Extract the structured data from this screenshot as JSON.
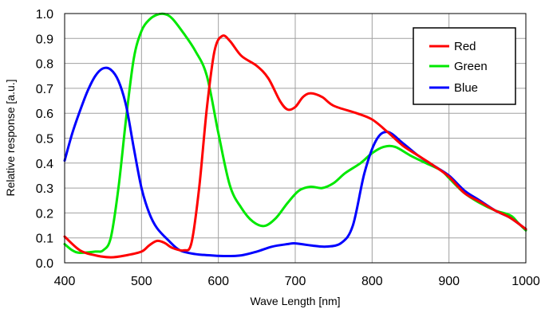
{
  "chart_data": {
    "type": "line",
    "xlabel": "Wave Length [nm]",
    "ylabel": "Relative response [a.u.]",
    "xlim": [
      400,
      1000
    ],
    "ylim": [
      0.0,
      1.0
    ],
    "x_ticks": [
      400,
      500,
      600,
      700,
      800,
      900,
      1000
    ],
    "y_ticks": [
      0.0,
      0.1,
      0.2,
      0.3,
      0.4,
      0.5,
      0.6,
      0.7,
      0.8,
      0.9,
      1.0
    ],
    "x_tick_labels": [
      "400",
      "500",
      "600",
      "700",
      "800",
      "900",
      "1000"
    ],
    "y_tick_labels": [
      "0.0",
      "0.1",
      "0.2",
      "0.3",
      "0.4",
      "0.5",
      "0.6",
      "0.7",
      "0.8",
      "0.9",
      "1.0"
    ],
    "grid": true,
    "legend_position": "top-right",
    "series": [
      {
        "name": "Red",
        "color": "#ff0000",
        "points": [
          [
            400,
            0.105
          ],
          [
            420,
            0.05
          ],
          [
            440,
            0.03
          ],
          [
            460,
            0.022
          ],
          [
            480,
            0.03
          ],
          [
            500,
            0.045
          ],
          [
            510,
            0.07
          ],
          [
            520,
            0.088
          ],
          [
            530,
            0.08
          ],
          [
            540,
            0.06
          ],
          [
            555,
            0.05
          ],
          [
            565,
            0.08
          ],
          [
            575,
            0.3
          ],
          [
            585,
            0.62
          ],
          [
            595,
            0.85
          ],
          [
            605,
            0.91
          ],
          [
            615,
            0.89
          ],
          [
            630,
            0.83
          ],
          [
            650,
            0.79
          ],
          [
            665,
            0.74
          ],
          [
            680,
            0.65
          ],
          [
            690,
            0.615
          ],
          [
            700,
            0.625
          ],
          [
            710,
            0.665
          ],
          [
            720,
            0.68
          ],
          [
            735,
            0.665
          ],
          [
            750,
            0.63
          ],
          [
            780,
            0.6
          ],
          [
            800,
            0.575
          ],
          [
            820,
            0.525
          ],
          [
            840,
            0.47
          ],
          [
            860,
            0.43
          ],
          [
            880,
            0.39
          ],
          [
            900,
            0.345
          ],
          [
            920,
            0.28
          ],
          [
            940,
            0.245
          ],
          [
            960,
            0.21
          ],
          [
            980,
            0.18
          ],
          [
            1000,
            0.135
          ]
        ]
      },
      {
        "name": "Green",
        "color": "#00e800",
        "points": [
          [
            400,
            0.075
          ],
          [
            410,
            0.05
          ],
          [
            420,
            0.04
          ],
          [
            440,
            0.045
          ],
          [
            450,
            0.05
          ],
          [
            460,
            0.1
          ],
          [
            470,
            0.3
          ],
          [
            480,
            0.58
          ],
          [
            490,
            0.82
          ],
          [
            500,
            0.93
          ],
          [
            510,
            0.975
          ],
          [
            520,
            0.995
          ],
          [
            530,
            0.998
          ],
          [
            540,
            0.98
          ],
          [
            555,
            0.92
          ],
          [
            570,
            0.85
          ],
          [
            585,
            0.75
          ],
          [
            600,
            0.52
          ],
          [
            615,
            0.31
          ],
          [
            630,
            0.22
          ],
          [
            645,
            0.165
          ],
          [
            660,
            0.148
          ],
          [
            675,
            0.18
          ],
          [
            690,
            0.24
          ],
          [
            705,
            0.29
          ],
          [
            720,
            0.305
          ],
          [
            735,
            0.3
          ],
          [
            750,
            0.32
          ],
          [
            765,
            0.36
          ],
          [
            785,
            0.4
          ],
          [
            800,
            0.44
          ],
          [
            815,
            0.465
          ],
          [
            830,
            0.465
          ],
          [
            850,
            0.43
          ],
          [
            870,
            0.4
          ],
          [
            890,
            0.37
          ],
          [
            900,
            0.34
          ],
          [
            920,
            0.28
          ],
          [
            940,
            0.24
          ],
          [
            960,
            0.21
          ],
          [
            980,
            0.19
          ],
          [
            990,
            0.16
          ],
          [
            1000,
            0.13
          ]
        ]
      },
      {
        "name": "Blue",
        "color": "#0000ff",
        "points": [
          [
            400,
            0.41
          ],
          [
            410,
            0.52
          ],
          [
            420,
            0.61
          ],
          [
            430,
            0.69
          ],
          [
            440,
            0.75
          ],
          [
            450,
            0.78
          ],
          [
            460,
            0.775
          ],
          [
            470,
            0.73
          ],
          [
            480,
            0.63
          ],
          [
            490,
            0.46
          ],
          [
            500,
            0.3
          ],
          [
            510,
            0.2
          ],
          [
            520,
            0.14
          ],
          [
            535,
            0.09
          ],
          [
            550,
            0.05
          ],
          [
            570,
            0.035
          ],
          [
            590,
            0.03
          ],
          [
            610,
            0.027
          ],
          [
            630,
            0.03
          ],
          [
            650,
            0.045
          ],
          [
            670,
            0.065
          ],
          [
            690,
            0.075
          ],
          [
            700,
            0.078
          ],
          [
            720,
            0.07
          ],
          [
            740,
            0.065
          ],
          [
            760,
            0.08
          ],
          [
            775,
            0.15
          ],
          [
            790,
            0.36
          ],
          [
            805,
            0.49
          ],
          [
            820,
            0.525
          ],
          [
            840,
            0.48
          ],
          [
            860,
            0.43
          ],
          [
            880,
            0.39
          ],
          [
            900,
            0.35
          ],
          [
            920,
            0.29
          ],
          [
            940,
            0.25
          ],
          [
            960,
            0.21
          ],
          [
            980,
            0.18
          ],
          [
            1000,
            0.135
          ]
        ]
      }
    ]
  }
}
